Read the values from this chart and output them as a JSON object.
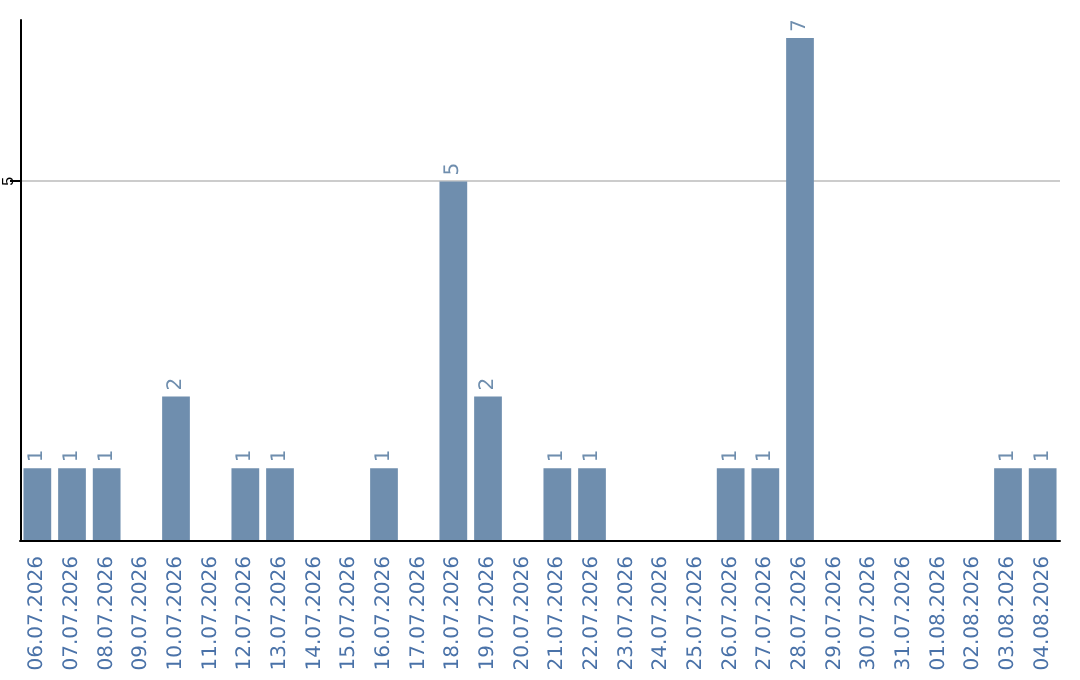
{
  "chart_data": {
    "type": "bar",
    "categories": [
      "06.07.2026",
      "07.07.2026",
      "08.07.2026",
      "09.07.2026",
      "10.07.2026",
      "11.07.2026",
      "12.07.2026",
      "13.07.2026",
      "14.07.2026",
      "15.07.2026",
      "16.07.2026",
      "17.07.2026",
      "18.07.2026",
      "19.07.2026",
      "20.07.2026",
      "21.07.2026",
      "22.07.2026",
      "23.07.2026",
      "24.07.2026",
      "25.07.2026",
      "26.07.2026",
      "27.07.2026",
      "28.07.2026",
      "29.07.2026",
      "30.07.2026",
      "31.07.2026",
      "01.08.2026",
      "02.08.2026",
      "03.08.2026",
      "04.08.2026"
    ],
    "values": [
      1,
      1,
      1,
      0,
      2,
      0,
      1,
      1,
      0,
      0,
      1,
      0,
      5,
      2,
      0,
      1,
      1,
      0,
      0,
      0,
      1,
      1,
      7,
      0,
      0,
      0,
      0,
      0,
      1,
      1
    ],
    "value_labels": [
      "1",
      "1",
      "1",
      null,
      "2",
      null,
      "1",
      "1",
      null,
      null,
      "1",
      null,
      "5",
      "2",
      null,
      "1",
      "1",
      null,
      null,
      null,
      "1",
      "1",
      "7",
      null,
      null,
      null,
      null,
      null,
      "1",
      "1"
    ],
    "color": "#6f8eae",
    "ylim": [
      0,
      7.25
    ],
    "yticks": [
      5
    ],
    "grid": "y"
  }
}
